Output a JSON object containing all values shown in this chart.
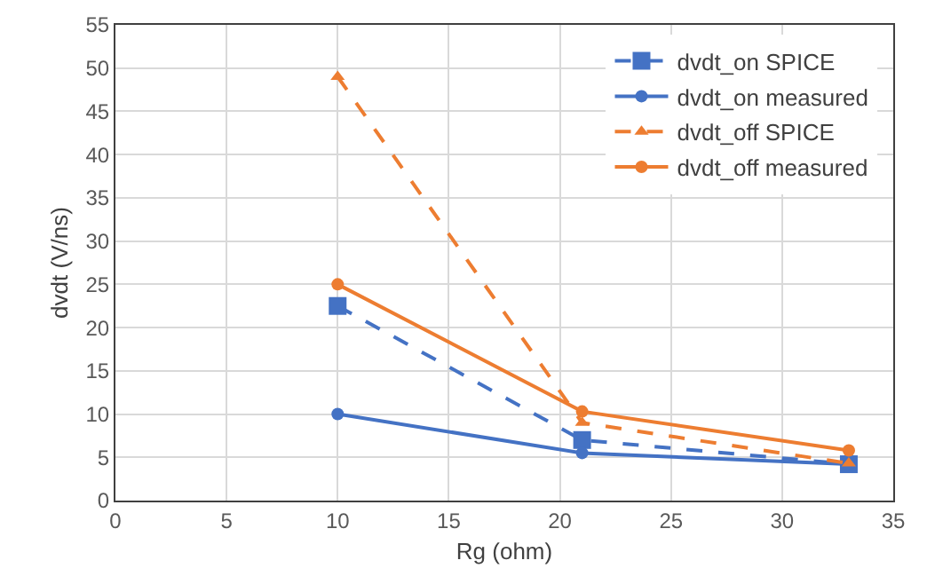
{
  "chart_data": {
    "type": "line",
    "xlabel": "Rg (ohm)",
    "ylabel": "dvdt (V/ns)",
    "x": [
      10,
      21,
      33
    ],
    "xlim": [
      0,
      35
    ],
    "xticks": [
      0,
      5,
      10,
      15,
      20,
      25,
      30,
      35
    ],
    "ylim": [
      0,
      55
    ],
    "yticks": [
      0,
      5,
      10,
      15,
      20,
      25,
      30,
      35,
      40,
      45,
      50,
      55
    ],
    "grid": true,
    "legend": "top right",
    "series": [
      {
        "name": "dvdt_on SPICE",
        "color": "#4472c4",
        "values": [
          22.5,
          7,
          4.2
        ],
        "marker": "square",
        "line_style": "dashed"
      },
      {
        "name": "dvdt_on measured",
        "color": "#4472c4",
        "values": [
          10,
          5.5,
          4.2
        ],
        "marker": "circle",
        "line_style": "solid"
      },
      {
        "name": "dvdt_off SPICE",
        "color": "#ed7d31",
        "values": [
          49,
          9,
          4.3
        ],
        "marker": "triangle",
        "line_style": "dashed"
      },
      {
        "name": "dvdt_off measured",
        "color": "#ed7d31",
        "values": [
          25,
          10.3,
          5.8
        ],
        "marker": "circle",
        "line_style": "solid"
      }
    ]
  }
}
